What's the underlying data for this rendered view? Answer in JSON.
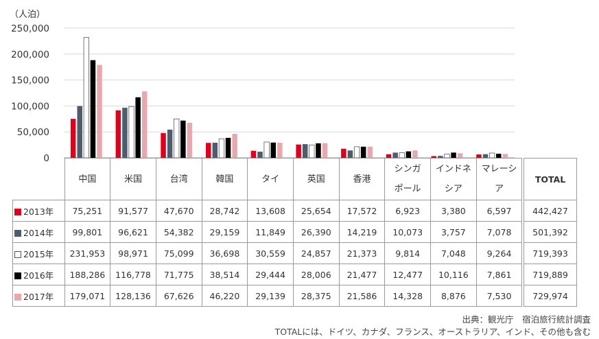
{
  "unit_label": "（人泊）",
  "source_line1": "出典：観光庁　宿泊旅行統計調査",
  "source_line2": "TOTALには、ドイツ、カナダ、フランス、オーストラリア、インド、その他も含む",
  "total_header": "TOTAL",
  "category_lines": [
    [
      "中国"
    ],
    [
      "米国"
    ],
    [
      "台湾"
    ],
    [
      "韓国"
    ],
    [
      "タイ"
    ],
    [
      "英国"
    ],
    [
      "香港"
    ],
    [
      "シンガ",
      "ポール"
    ],
    [
      "インドネ",
      "シア"
    ],
    [
      "マレーシ",
      "ア"
    ]
  ],
  "row_labels": [
    "2013年",
    "2014年",
    "2015年",
    "2016年",
    "2017年"
  ],
  "table_values": [
    [
      "75,251",
      "91,577",
      "47,670",
      "28,742",
      "13,608",
      "25,654",
      "17,572",
      "6,923",
      "3,380",
      "6,597"
    ],
    [
      "99,801",
      "96,621",
      "54,382",
      "29,159",
      "11,849",
      "26,390",
      "14,219",
      "10,073",
      "3,757",
      "7,078"
    ],
    [
      "231,953",
      "98,971",
      "75,099",
      "36,698",
      "30,559",
      "24,857",
      "21,373",
      "9,814",
      "7,048",
      "9,264"
    ],
    [
      "188,286",
      "116,778",
      "71,775",
      "38,514",
      "29,444",
      "28,006",
      "21,477",
      "12,477",
      "10,116",
      "7,861"
    ],
    [
      "179,071",
      "128,136",
      "67,626",
      "46,220",
      "29,139",
      "28,375",
      "21,586",
      "14,328",
      "8,876",
      "7,530"
    ]
  ],
  "totals": [
    "442,427",
    "501,392",
    "719,393",
    "719,889",
    "729,974"
  ],
  "colors": [
    "#e0001b",
    "#4d5d6e",
    "#ffffff",
    "#000000",
    "#e8a8ae"
  ],
  "chart_data": {
    "type": "bar",
    "categories": [
      "中国",
      "米国",
      "台湾",
      "韓国",
      "タイ",
      "英国",
      "香港",
      "シンガポール",
      "インドネシア",
      "マレーシア"
    ],
    "series": [
      {
        "name": "2013年",
        "values": [
          75251,
          91577,
          47670,
          28742,
          13608,
          25654,
          17572,
          6923,
          3380,
          6597
        ]
      },
      {
        "name": "2014年",
        "values": [
          99801,
          96621,
          54382,
          29159,
          11849,
          26390,
          14219,
          10073,
          3757,
          7078
        ]
      },
      {
        "name": "2015年",
        "values": [
          231953,
          98971,
          75099,
          36698,
          30559,
          24857,
          21373,
          9814,
          7048,
          9264
        ]
      },
      {
        "name": "2016年",
        "values": [
          188286,
          116778,
          71775,
          38514,
          29444,
          28006,
          21477,
          12477,
          10116,
          7861
        ]
      },
      {
        "name": "2017年",
        "values": [
          179071,
          128136,
          67626,
          46220,
          29139,
          28375,
          21586,
          14328,
          8876,
          7530
        ]
      }
    ],
    "totals": [
      442427,
      501392,
      719393,
      719889,
      729974
    ],
    "ylabel": "（人泊）",
    "ylim": [
      0,
      250000
    ],
    "yticks": [
      "250,000",
      "200,000",
      "150,000",
      "100,000",
      "50,000",
      "0"
    ],
    "grid": true,
    "legend": "table"
  }
}
